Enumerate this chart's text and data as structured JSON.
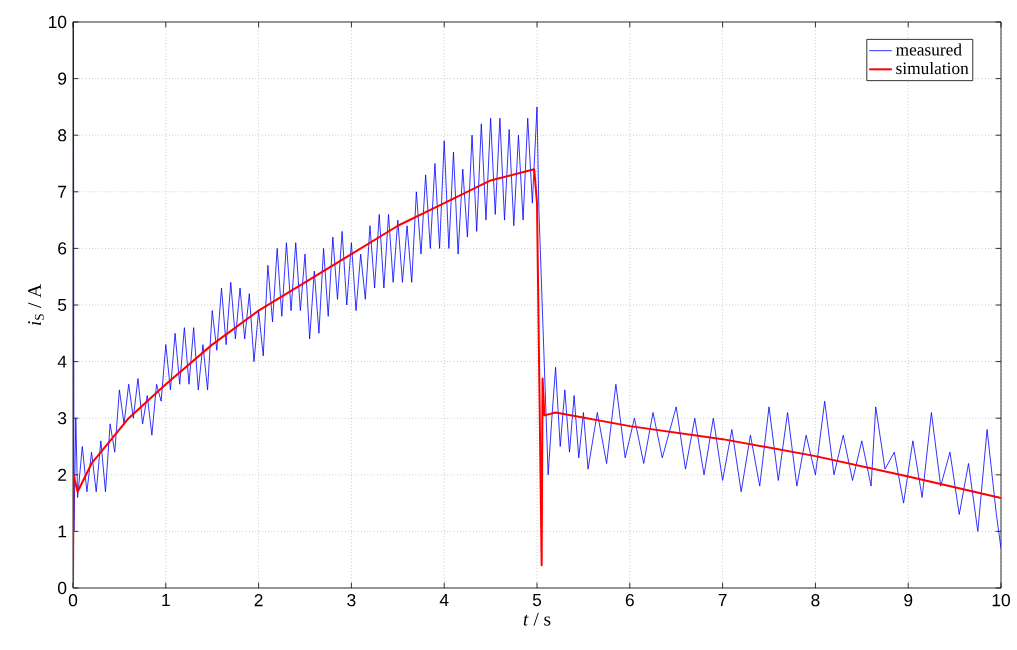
{
  "chart_data": {
    "type": "line",
    "xlabel": "*t* / s",
    "ylabel": "*i*$_{S}$ / A",
    "xlim": [
      0,
      10
    ],
    "ylim": [
      0,
      10
    ],
    "xticks": [
      0,
      1,
      2,
      3,
      4,
      5,
      6,
      7,
      8,
      9,
      10
    ],
    "yticks": [
      0,
      1,
      2,
      3,
      4,
      5,
      6,
      7,
      8,
      9,
      10
    ],
    "grid": true,
    "legend": "top right",
    "marker": "none",
    "line_style": "solid",
    "series": [
      {
        "name": "measured",
        "color": "#0000ff",
        "x": [
          0,
          0.005,
          0.01,
          0.03,
          0.05,
          0.1,
          0.15,
          0.2,
          0.25,
          0.3,
          0.35,
          0.4,
          0.45,
          0.5,
          0.55,
          0.6,
          0.65,
          0.7,
          0.75,
          0.8,
          0.85,
          0.9,
          0.95,
          1.0,
          1.05,
          1.1,
          1.15,
          1.2,
          1.25,
          1.3,
          1.35,
          1.4,
          1.45,
          1.5,
          1.55,
          1.6,
          1.65,
          1.7,
          1.75,
          1.8,
          1.85,
          1.9,
          1.95,
          2.0,
          2.05,
          2.1,
          2.15,
          2.2,
          2.25,
          2.3,
          2.35,
          2.4,
          2.45,
          2.5,
          2.55,
          2.6,
          2.65,
          2.7,
          2.75,
          2.8,
          2.85,
          2.9,
          2.95,
          3.0,
          3.05,
          3.1,
          3.15,
          3.2,
          3.25,
          3.3,
          3.35,
          3.4,
          3.45,
          3.5,
          3.55,
          3.6,
          3.65,
          3.7,
          3.75,
          3.8,
          3.85,
          3.9,
          3.95,
          4.0,
          4.05,
          4.1,
          4.15,
          4.2,
          4.25,
          4.3,
          4.35,
          4.4,
          4.45,
          4.5,
          4.55,
          4.6,
          4.65,
          4.7,
          4.75,
          4.8,
          4.85,
          4.9,
          4.95,
          5.0,
          5.02,
          5.04,
          5.08,
          5.12,
          5.16,
          5.2,
          5.25,
          5.3,
          5.35,
          5.4,
          5.45,
          5.5,
          5.55,
          5.65,
          5.75,
          5.85,
          5.95,
          6.05,
          6.15,
          6.25,
          6.35,
          6.5,
          6.6,
          6.7,
          6.8,
          6.9,
          7.0,
          7.1,
          7.2,
          7.3,
          7.4,
          7.5,
          7.6,
          7.7,
          7.8,
          7.9,
          8.0,
          8.1,
          8.2,
          8.3,
          8.4,
          8.5,
          8.6,
          8.65,
          8.75,
          8.85,
          8.95,
          9.05,
          9.15,
          9.25,
          9.35,
          9.45,
          9.55,
          9.65,
          9.75,
          9.85,
          9.95,
          10.0
        ],
        "values": [
          0,
          10,
          1.0,
          3.0,
          1.6,
          2.5,
          1.7,
          2.4,
          1.7,
          2.6,
          1.7,
          2.9,
          2.4,
          3.5,
          2.9,
          3.6,
          3.0,
          3.7,
          2.9,
          3.4,
          2.7,
          3.6,
          3.3,
          4.3,
          3.5,
          4.5,
          3.6,
          4.6,
          3.6,
          4.6,
          3.5,
          4.3,
          3.5,
          4.9,
          4.2,
          5.3,
          4.3,
          5.4,
          4.4,
          5.3,
          4.4,
          5.2,
          4.0,
          4.9,
          4.1,
          5.7,
          4.7,
          6.0,
          4.8,
          6.1,
          4.9,
          6.1,
          4.9,
          5.9,
          4.4,
          5.6,
          4.5,
          6.0,
          4.8,
          6.2,
          5.1,
          6.3,
          5.0,
          6.1,
          4.9,
          5.9,
          5.1,
          6.4,
          5.3,
          6.6,
          5.3,
          6.6,
          5.4,
          6.5,
          5.4,
          6.4,
          5.4,
          7.0,
          5.9,
          7.3,
          6.0,
          7.5,
          6.0,
          7.9,
          6.0,
          7.7,
          5.9,
          7.4,
          6.2,
          8.0,
          6.3,
          8.2,
          6.5,
          8.3,
          6.6,
          8.3,
          6.5,
          8.1,
          6.4,
          8.0,
          6.5,
          8.3,
          6.8,
          8.5,
          6.7,
          null,
          null,
          2.0,
          3.0,
          3.9,
          2.5,
          3.5,
          2.4,
          3.4,
          2.3,
          3.1,
          2.1,
          3.1,
          2.2,
          3.6,
          2.3,
          3.0,
          2.2,
          3.1,
          2.3,
          3.2,
          2.1,
          3.0,
          2.0,
          3.0,
          1.9,
          2.8,
          1.7,
          2.7,
          1.8,
          3.2,
          1.9,
          3.1,
          1.8,
          2.7,
          2.0,
          3.3,
          2.0,
          2.7,
          1.9,
          2.6,
          1.8,
          3.2,
          2.1,
          2.4,
          1.5,
          2.6,
          1.6,
          3.1,
          1.8,
          2.4,
          1.3,
          2.2,
          1.0,
          2.8,
          1.3,
          0.7
        ]
      },
      {
        "name": "simulation",
        "color": "#ff0000",
        "x": [
          0,
          0.005,
          0.05,
          0.2,
          0.4,
          0.6,
          0.8,
          1,
          1.5,
          2,
          2.5,
          3,
          3.5,
          4,
          4.5,
          4.97,
          5.0,
          5.03,
          5.05,
          5.06,
          5.08,
          5.2,
          6,
          7,
          8,
          9,
          10
        ],
        "values": [
          0,
          2,
          1.7,
          2.2,
          2.6,
          3.0,
          3.3,
          3.6,
          4.3,
          4.9,
          5.4,
          5.9,
          6.4,
          6.8,
          7.2,
          7.4,
          6.8,
          3.0,
          0.4,
          3.7,
          3.05,
          3.1,
          2.86,
          2.63,
          2.33,
          1.97,
          1.59
        ]
      }
    ]
  }
}
